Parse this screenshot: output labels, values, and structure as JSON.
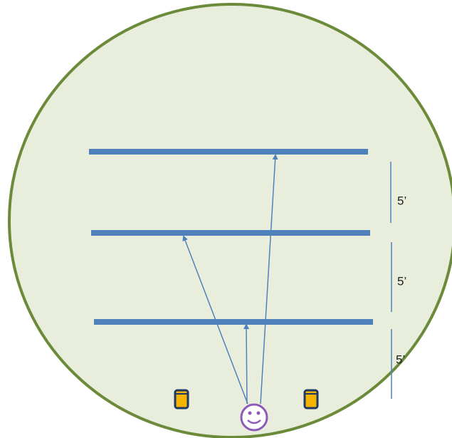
{
  "labels": [
    "5’",
    "5’",
    "5’"
  ]
}
